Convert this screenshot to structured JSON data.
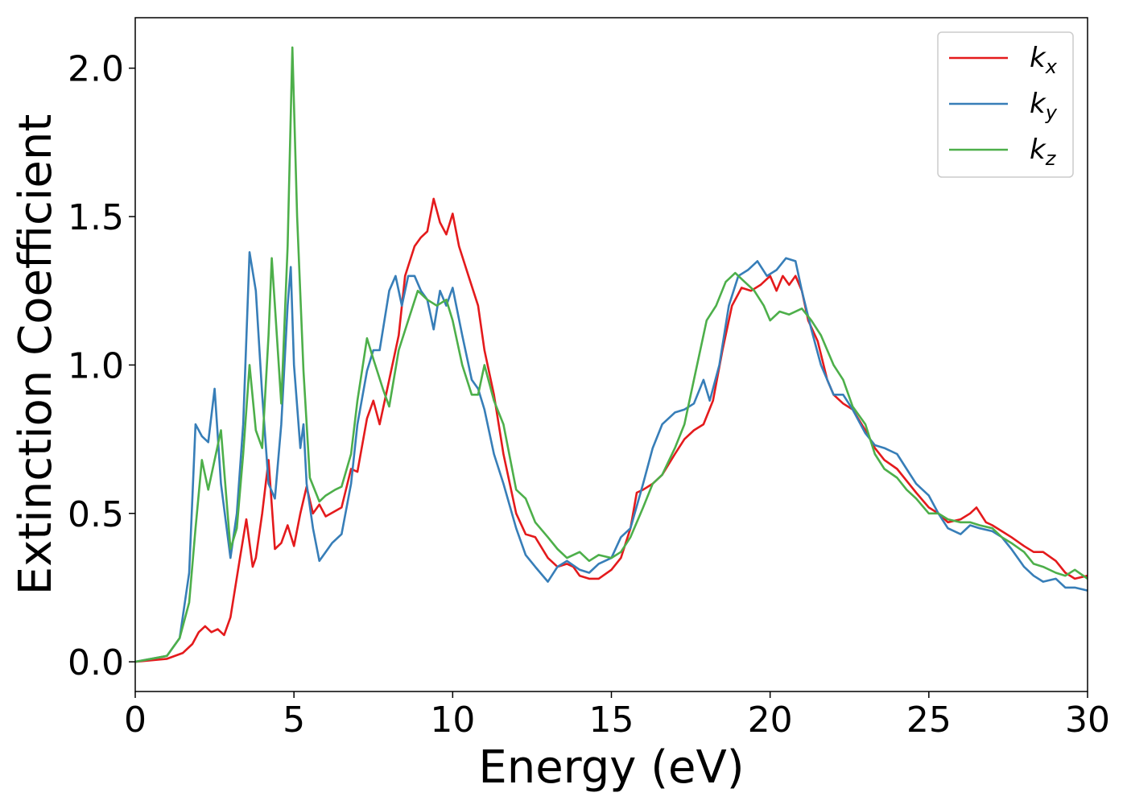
{
  "chart_data": {
    "type": "line",
    "title": "",
    "xlabel": "Energy (eV)",
    "ylabel": "Extinction Coefficient",
    "xlim": [
      0,
      30
    ],
    "ylim": [
      -0.1,
      2.17
    ],
    "xticks": [
      0,
      5,
      10,
      15,
      20,
      25,
      30
    ],
    "xtick_labels": [
      "0",
      "5",
      "10",
      "15",
      "20",
      "25",
      "30"
    ],
    "yticks": [
      0.0,
      0.5,
      1.0,
      1.5,
      2.0
    ],
    "ytick_labels": [
      "0.0",
      "0.5",
      "1.0",
      "1.5",
      "2.0"
    ],
    "grid": false,
    "legend_position": "top-right",
    "series": [
      {
        "name": "k_x",
        "legend_base": "k",
        "legend_sub": "x",
        "color": "#e41a1c",
        "x": [
          0,
          1,
          1.5,
          1.8,
          2.0,
          2.2,
          2.4,
          2.6,
          2.8,
          3.0,
          3.3,
          3.5,
          3.7,
          3.8,
          4.0,
          4.2,
          4.4,
          4.6,
          4.8,
          5.0,
          5.2,
          5.4,
          5.6,
          5.8,
          6.0,
          6.5,
          6.8,
          7.0,
          7.3,
          7.5,
          7.7,
          8.0,
          8.3,
          8.5,
          8.8,
          9.0,
          9.2,
          9.4,
          9.6,
          9.8,
          10.0,
          10.2,
          10.5,
          10.8,
          11.0,
          11.3,
          11.6,
          12.0,
          12.3,
          12.6,
          13.0,
          13.3,
          13.6,
          13.8,
          14.0,
          14.3,
          14.6,
          15.0,
          15.3,
          15.6,
          15.8,
          16.0,
          16.3,
          16.6,
          17.0,
          17.3,
          17.6,
          17.9,
          18.2,
          18.5,
          18.8,
          19.1,
          19.4,
          19.7,
          20.0,
          20.2,
          20.4,
          20.6,
          20.8,
          21.0,
          21.2,
          21.5,
          21.8,
          22.0,
          22.3,
          22.6,
          23.0,
          23.3,
          23.6,
          24.0,
          24.3,
          24.6,
          25.0,
          25.3,
          25.6,
          26.0,
          26.3,
          26.5,
          26.8,
          27.0,
          27.3,
          27.6,
          28.0,
          28.3,
          28.6,
          29.0,
          29.3,
          29.6,
          30.0
        ],
        "y": [
          0.0,
          0.01,
          0.03,
          0.06,
          0.1,
          0.12,
          0.1,
          0.11,
          0.09,
          0.15,
          0.35,
          0.48,
          0.32,
          0.35,
          0.5,
          0.68,
          0.38,
          0.4,
          0.46,
          0.39,
          0.5,
          0.59,
          0.5,
          0.53,
          0.49,
          0.52,
          0.65,
          0.64,
          0.82,
          0.88,
          0.8,
          0.95,
          1.1,
          1.3,
          1.4,
          1.43,
          1.45,
          1.56,
          1.48,
          1.44,
          1.51,
          1.4,
          1.3,
          1.2,
          1.05,
          0.9,
          0.7,
          0.5,
          0.43,
          0.42,
          0.35,
          0.32,
          0.33,
          0.32,
          0.29,
          0.28,
          0.28,
          0.31,
          0.35,
          0.45,
          0.57,
          0.58,
          0.6,
          0.63,
          0.7,
          0.75,
          0.78,
          0.8,
          0.88,
          1.05,
          1.2,
          1.26,
          1.25,
          1.27,
          1.3,
          1.25,
          1.3,
          1.27,
          1.3,
          1.25,
          1.15,
          1.08,
          0.95,
          0.9,
          0.87,
          0.85,
          0.78,
          0.72,
          0.68,
          0.65,
          0.61,
          0.57,
          0.52,
          0.5,
          0.47,
          0.48,
          0.5,
          0.52,
          0.47,
          0.46,
          0.44,
          0.42,
          0.39,
          0.37,
          0.37,
          0.34,
          0.3,
          0.28,
          0.29
        ]
      },
      {
        "name": "k_y",
        "legend_base": "k",
        "legend_sub": "y",
        "color": "#377eb8",
        "x": [
          0,
          1,
          1.4,
          1.7,
          1.9,
          2.1,
          2.3,
          2.5,
          2.7,
          3.0,
          3.2,
          3.4,
          3.6,
          3.8,
          4.0,
          4.2,
          4.4,
          4.6,
          4.8,
          4.9,
          5.0,
          5.2,
          5.3,
          5.4,
          5.6,
          5.8,
          6.0,
          6.2,
          6.5,
          6.8,
          7.0,
          7.3,
          7.5,
          7.7,
          8.0,
          8.2,
          8.4,
          8.6,
          8.8,
          9.0,
          9.2,
          9.4,
          9.6,
          9.8,
          10.0,
          10.3,
          10.6,
          10.8,
          11.0,
          11.3,
          11.6,
          12.0,
          12.3,
          12.6,
          13.0,
          13.3,
          13.6,
          14.0,
          14.3,
          14.6,
          15.0,
          15.3,
          15.6,
          16.0,
          16.3,
          16.6,
          17.0,
          17.3,
          17.6,
          17.9,
          18.1,
          18.4,
          18.7,
          19.0,
          19.3,
          19.6,
          19.9,
          20.2,
          20.5,
          20.8,
          21.0,
          21.3,
          21.6,
          22.0,
          22.3,
          22.6,
          23.0,
          23.3,
          23.6,
          24.0,
          24.3,
          24.6,
          25.0,
          25.3,
          25.6,
          26.0,
          26.3,
          26.6,
          27.0,
          27.3,
          27.6,
          28.0,
          28.3,
          28.6,
          29.0,
          29.3,
          29.6,
          30.0
        ],
        "y": [
          0.0,
          0.02,
          0.08,
          0.3,
          0.8,
          0.76,
          0.74,
          0.92,
          0.6,
          0.35,
          0.5,
          0.8,
          1.38,
          1.25,
          0.9,
          0.6,
          0.55,
          0.8,
          1.2,
          1.33,
          1.0,
          0.72,
          0.8,
          0.6,
          0.45,
          0.34,
          0.37,
          0.4,
          0.43,
          0.6,
          0.8,
          0.98,
          1.05,
          1.05,
          1.25,
          1.3,
          1.2,
          1.3,
          1.3,
          1.25,
          1.22,
          1.12,
          1.25,
          1.2,
          1.26,
          1.1,
          0.95,
          0.92,
          0.85,
          0.7,
          0.6,
          0.45,
          0.36,
          0.32,
          0.27,
          0.32,
          0.34,
          0.31,
          0.3,
          0.33,
          0.35,
          0.42,
          0.45,
          0.6,
          0.72,
          0.8,
          0.84,
          0.85,
          0.87,
          0.95,
          0.88,
          1.0,
          1.2,
          1.3,
          1.32,
          1.35,
          1.3,
          1.32,
          1.36,
          1.35,
          1.25,
          1.12,
          1.0,
          0.9,
          0.9,
          0.85,
          0.77,
          0.73,
          0.72,
          0.7,
          0.65,
          0.6,
          0.56,
          0.5,
          0.45,
          0.43,
          0.46,
          0.45,
          0.44,
          0.42,
          0.38,
          0.32,
          0.29,
          0.27,
          0.28,
          0.25,
          0.25,
          0.24
        ]
      },
      {
        "name": "k_z",
        "legend_base": "k",
        "legend_sub": "z",
        "color": "#4daf4a",
        "x": [
          0,
          1,
          1.4,
          1.7,
          1.9,
          2.1,
          2.3,
          2.5,
          2.7,
          3.0,
          3.2,
          3.4,
          3.6,
          3.8,
          4.0,
          4.2,
          4.3,
          4.4,
          4.6,
          4.8,
          4.95,
          5.1,
          5.3,
          5.5,
          5.8,
          6.0,
          6.3,
          6.5,
          6.8,
          7.0,
          7.3,
          7.5,
          7.8,
          8.0,
          8.3,
          8.6,
          8.9,
          9.2,
          9.5,
          9.8,
          10.0,
          10.3,
          10.6,
          10.8,
          11.0,
          11.3,
          11.6,
          12.0,
          12.3,
          12.6,
          13.0,
          13.3,
          13.6,
          14.0,
          14.3,
          14.6,
          15.0,
          15.3,
          15.6,
          16.0,
          16.3,
          16.6,
          17.0,
          17.3,
          17.6,
          18.0,
          18.3,
          18.6,
          18.9,
          19.2,
          19.5,
          19.8,
          20.0,
          20.3,
          20.6,
          21.0,
          21.3,
          21.6,
          22.0,
          22.3,
          22.6,
          23.0,
          23.3,
          23.6,
          24.0,
          24.3,
          24.6,
          25.0,
          25.3,
          25.6,
          26.0,
          26.3,
          26.6,
          27.0,
          27.3,
          27.6,
          28.0,
          28.3,
          28.6,
          29.0,
          29.3,
          29.6,
          30.0
        ],
        "y": [
          0.0,
          0.02,
          0.08,
          0.2,
          0.45,
          0.68,
          0.58,
          0.68,
          0.78,
          0.38,
          0.45,
          0.7,
          1.0,
          0.78,
          0.72,
          1.1,
          1.36,
          1.2,
          0.87,
          1.4,
          2.07,
          1.5,
          0.98,
          0.62,
          0.54,
          0.56,
          0.58,
          0.59,
          0.7,
          0.88,
          1.09,
          1.02,
          0.92,
          0.86,
          1.05,
          1.15,
          1.25,
          1.22,
          1.2,
          1.22,
          1.15,
          1.0,
          0.9,
          0.9,
          1.0,
          0.88,
          0.8,
          0.58,
          0.55,
          0.47,
          0.42,
          0.38,
          0.35,
          0.37,
          0.34,
          0.36,
          0.35,
          0.37,
          0.42,
          0.52,
          0.6,
          0.63,
          0.72,
          0.8,
          0.95,
          1.15,
          1.2,
          1.28,
          1.31,
          1.28,
          1.25,
          1.2,
          1.15,
          1.18,
          1.17,
          1.19,
          1.15,
          1.1,
          1.0,
          0.95,
          0.86,
          0.8,
          0.7,
          0.65,
          0.62,
          0.58,
          0.55,
          0.5,
          0.5,
          0.48,
          0.47,
          0.47,
          0.46,
          0.45,
          0.42,
          0.4,
          0.37,
          0.33,
          0.32,
          0.3,
          0.29,
          0.31,
          0.28
        ]
      }
    ]
  }
}
